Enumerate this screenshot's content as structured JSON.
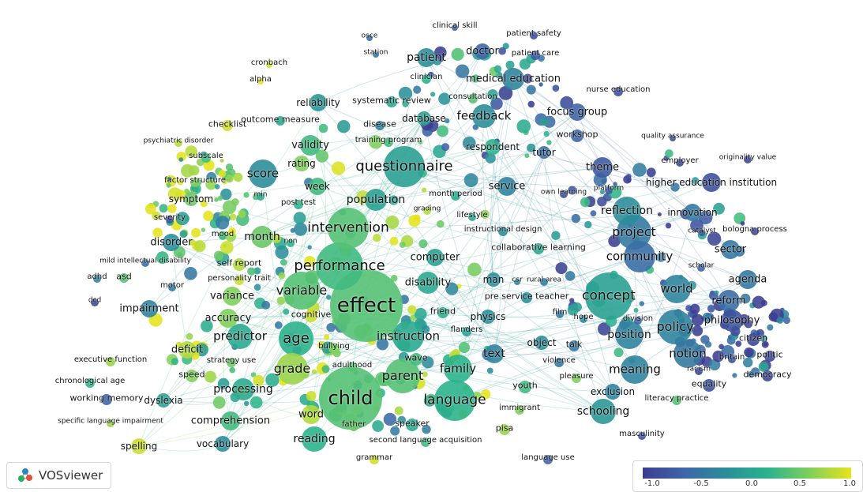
{
  "app": "VOSviewer",
  "legend": {
    "ticks": [
      "-1.0",
      "-0.5",
      "0.0",
      "0.5",
      "1.0"
    ],
    "colors": [
      "#3b3e8f",
      "#3f65a8",
      "#2b8e9a",
      "#2bb38c",
      "#7fcf5b",
      "#e5e41c"
    ]
  },
  "labels": {
    "l1": "clinical skill",
    "l2": "patient safety",
    "l3": "osce",
    "l4": "station",
    "l5": "patient",
    "l6": "doctor",
    "l7": "patient care",
    "l8": "cronbach",
    "l9": "alpha",
    "l10": "clinician",
    "l11": "medical education",
    "l12": "nurse education",
    "l13": "consultation",
    "l14": "reliability",
    "l15": "systematic review",
    "l16": "feedback",
    "l17": "database",
    "l18": "focus group",
    "l19": "checklist",
    "l20": "outcome measure",
    "l21": "disease",
    "l22": "workshop",
    "l23": "psychiatric disorder",
    "l24": "training program",
    "l25": "validity",
    "l26": "respondent",
    "l27": "tutor",
    "l28": "quality assurance",
    "l29": "subscale",
    "l30": "rating",
    "l31": "questionnaire",
    "l32": "theme",
    "l33": "employer",
    "l34": "originality value",
    "l35": "factor structure",
    "l36": "score",
    "l37": "week",
    "l38": "service",
    "l39": "higher education institution",
    "l40": "min",
    "l41": "month period",
    "l42": "own learning",
    "l43": "platform",
    "l44": "symptom",
    "l45": "population",
    "l46": "post test",
    "l47": "grading",
    "l48": "reflection",
    "l49": "innovation",
    "l50": "lifestyle",
    "l51": "severity",
    "l52": "intervention",
    "l53": "instructional design",
    "l54": "project",
    "l55": "catalyst",
    "l56": "bologna process",
    "l57": "mood",
    "l58": "month",
    "l59": "disorder",
    "l60": "non",
    "l61": "collaborative learning",
    "l62": "sector",
    "l63": "mild intellectual disability",
    "l64": "self report",
    "l65": "computer",
    "l66": "community",
    "l67": "scholar",
    "l68": "performance",
    "l69": "adhd",
    "l70": "asd",
    "l71": "personality trait",
    "l72": "man",
    "l73": "csr",
    "l74": "rural area",
    "l75": "agenda",
    "l76": "motor",
    "l77": "disability",
    "l78": "variable",
    "l79": "world",
    "l80": "concept",
    "l81": "dcd",
    "l82": "variance",
    "l83": "pre service teacher",
    "l84": "effect",
    "l85": "reform",
    "l86": "impairment",
    "l87": "friend",
    "l88": "cognitive",
    "l89": "film",
    "l90": "accuracy",
    "l91": "physics",
    "l92": "hope",
    "l93": "division",
    "l94": "philosophy",
    "l95": "policy",
    "l96": "flanders",
    "l97": "predictor",
    "l98": "age",
    "l99": "instruction",
    "l100": "position",
    "l101": "citizen",
    "l102": "deficit",
    "l103": "object",
    "l104": "talk",
    "l105": "bullying",
    "l106": "notion",
    "l107": "text",
    "l108": "politic",
    "l109": "executive function",
    "l110": "strategy use",
    "l111": "wave",
    "l112": "britain",
    "l113": "violence",
    "l114": "adulthood",
    "l115": "speed",
    "l116": "grade",
    "l117": "family",
    "l118": "meaning",
    "l119": "racism",
    "l120": "democracy",
    "l121": "parent",
    "l122": "pleasure",
    "l123": "chronological age",
    "l124": "equality",
    "l125": "processing",
    "l126": "youth",
    "l127": "exclusion",
    "l128": "working memory",
    "l129": "dyslexia",
    "l130": "child",
    "l131": "language",
    "l132": "literacy practice",
    "l133": "immigrant",
    "l134": "comprehension",
    "l135": "word",
    "l136": "schooling",
    "l137": "specific language impairment",
    "l138": "speaker",
    "l139": "father",
    "l140": "pisa",
    "l141": "masculinity",
    "l142": "reading",
    "l143": "second language acquisition",
    "l144": "spelling",
    "l145": "vocabulary",
    "l146": "grammar",
    "l147": "language use"
  }
}
